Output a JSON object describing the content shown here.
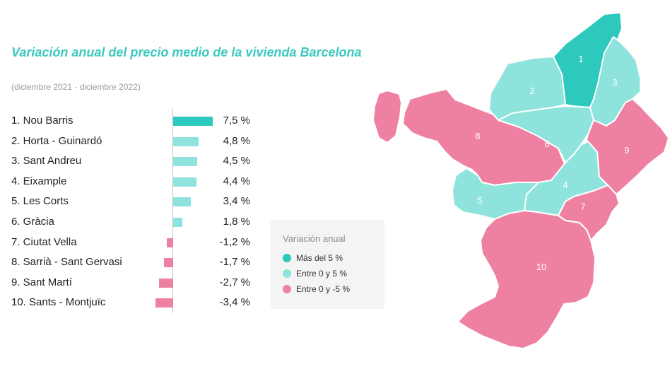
{
  "chart_data": {
    "type": "bar",
    "title": "Variación anual del precio medio de la vivienda Barcelona",
    "subtitle": "(diciembre 2021 - diciembre 2022)",
    "categories": [
      "1. Nou Barris",
      "2. Horta - Guinardó",
      "3. Sant Andreu",
      "4. Eixample",
      "5. Les Corts",
      "6. Gràcia",
      "7. Ciutat Vella",
      "8. Sarrià - Sant Gervasi",
      "9. Sant Martí",
      "10. Sants - Montjuïc"
    ],
    "values": [
      7.5,
      4.8,
      4.5,
      4.4,
      3.4,
      1.8,
      -1.2,
      -1.7,
      -2.7,
      -3.4
    ],
    "value_labels": [
      "7,5 %",
      "4,8 %",
      "4,5 %",
      "4,4 %",
      "3,4 %",
      "1,8 %",
      "-1,2 %",
      "-1,7 %",
      "-2,7 %",
      "-3,4 %"
    ],
    "legend": {
      "title": "Variación anual",
      "items": [
        {
          "label": "Más del 5 %",
          "color": "#2ec9bd"
        },
        {
          "label": "Entre 0 y 5 %",
          "color": "#8ee3dd"
        },
        {
          "label": "Entre 0 y -5 %",
          "color": "#ee80a1"
        }
      ]
    },
    "map_districts": [
      {
        "number": "1",
        "class": 0
      },
      {
        "number": "2",
        "class": 1
      },
      {
        "number": "3",
        "class": 1
      },
      {
        "number": "4",
        "class": 1
      },
      {
        "number": "5",
        "class": 1
      },
      {
        "number": "6",
        "class": 1
      },
      {
        "number": "7",
        "class": 2
      },
      {
        "number": "8",
        "class": 2
      },
      {
        "number": "9",
        "class": 2
      },
      {
        "number": "10",
        "class": 2
      }
    ]
  }
}
